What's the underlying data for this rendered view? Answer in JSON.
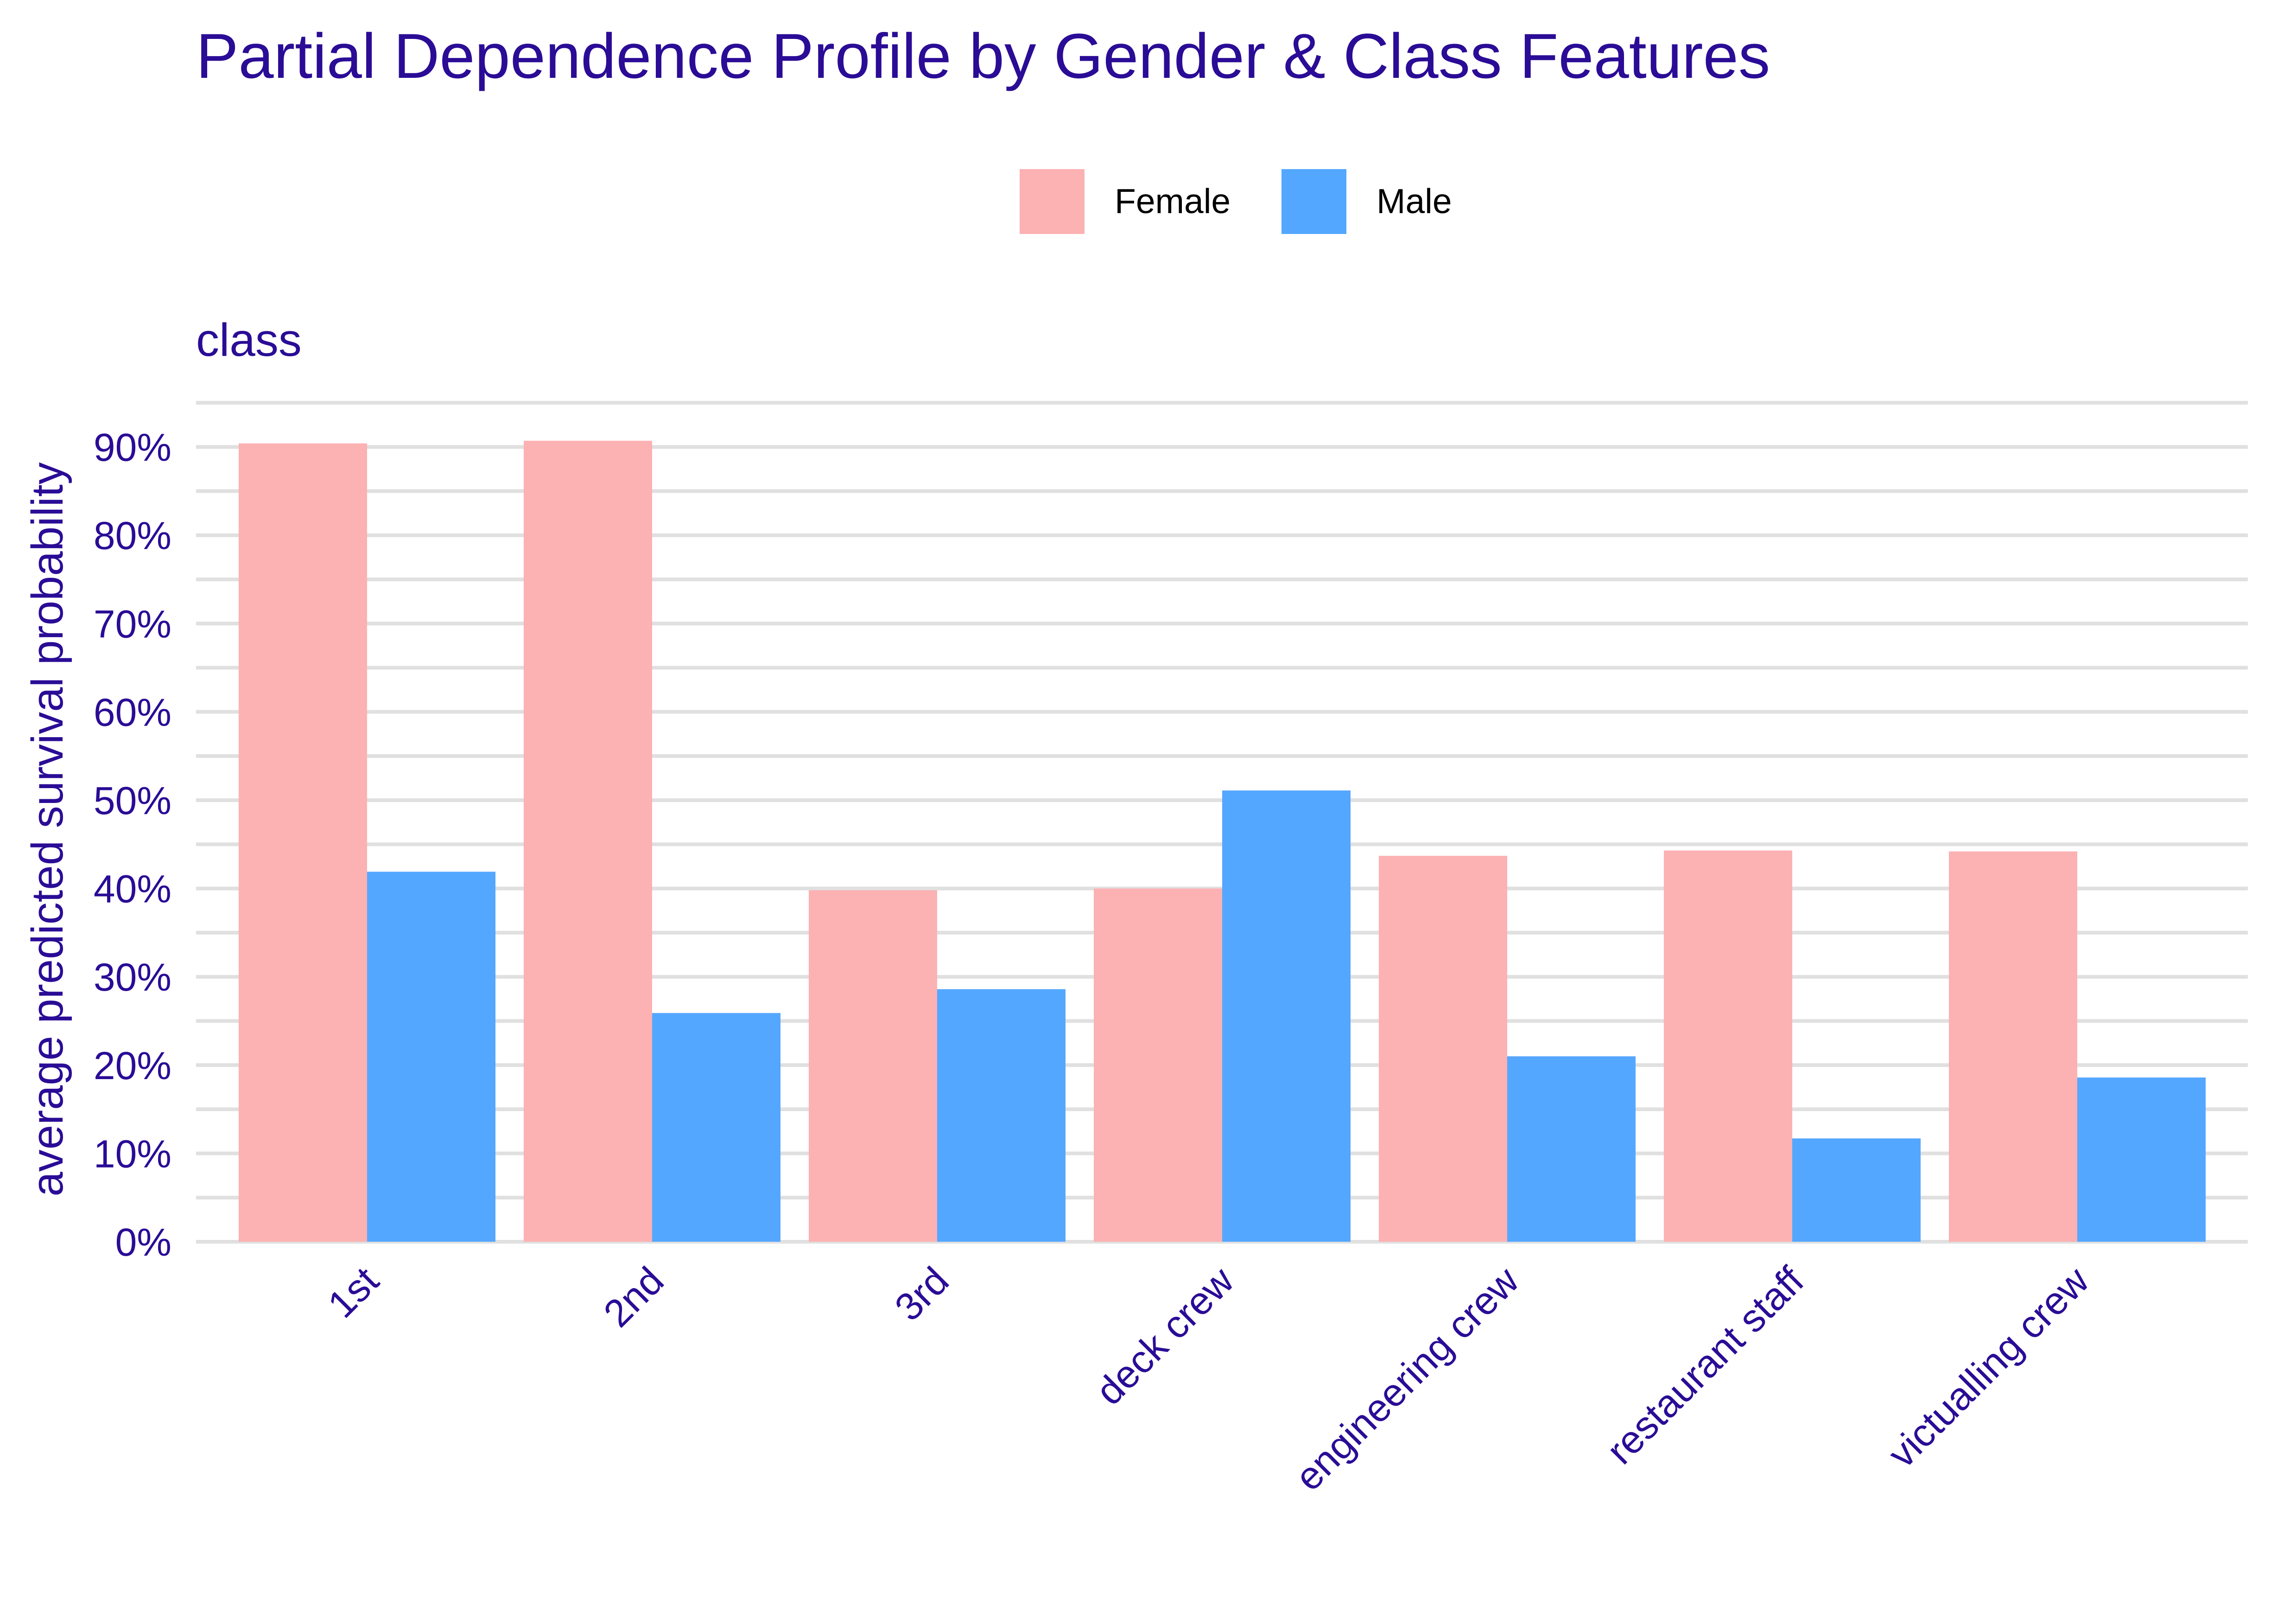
{
  "colors": {
    "text": "#2a0c96",
    "grid": "#e0e0e0",
    "female": "#fcb1b3",
    "male": "#54a7ff",
    "background": "#ffffff"
  },
  "chart_data": {
    "type": "bar",
    "title": "Partial Dependence Profile by Gender & Class Features",
    "facet_label": "class",
    "xlabel": "",
    "ylabel": "average predicted survival probability",
    "ylim": [
      0,
      0.95
    ],
    "y_ticks": [
      0,
      0.1,
      0.2,
      0.3,
      0.4,
      0.5,
      0.6,
      0.7,
      0.8,
      0.9
    ],
    "y_tick_labels": [
      "0%",
      "10%",
      "20%",
      "30%",
      "40%",
      "50%",
      "60%",
      "70%",
      "80%",
      "90%"
    ],
    "grid": true,
    "legend_position": "top",
    "categories": [
      "1st",
      "2nd",
      "3rd",
      "deck crew",
      "engineering crew",
      "restaurant staff",
      "victualling crew"
    ],
    "series": [
      {
        "name": "Female",
        "color": "#fcb1b3",
        "values": [
          0.904,
          0.907,
          0.398,
          0.4,
          0.437,
          0.443,
          0.442
        ]
      },
      {
        "name": "Male",
        "color": "#54a7ff",
        "values": [
          0.419,
          0.259,
          0.286,
          0.511,
          0.21,
          0.117,
          0.186
        ]
      }
    ]
  }
}
